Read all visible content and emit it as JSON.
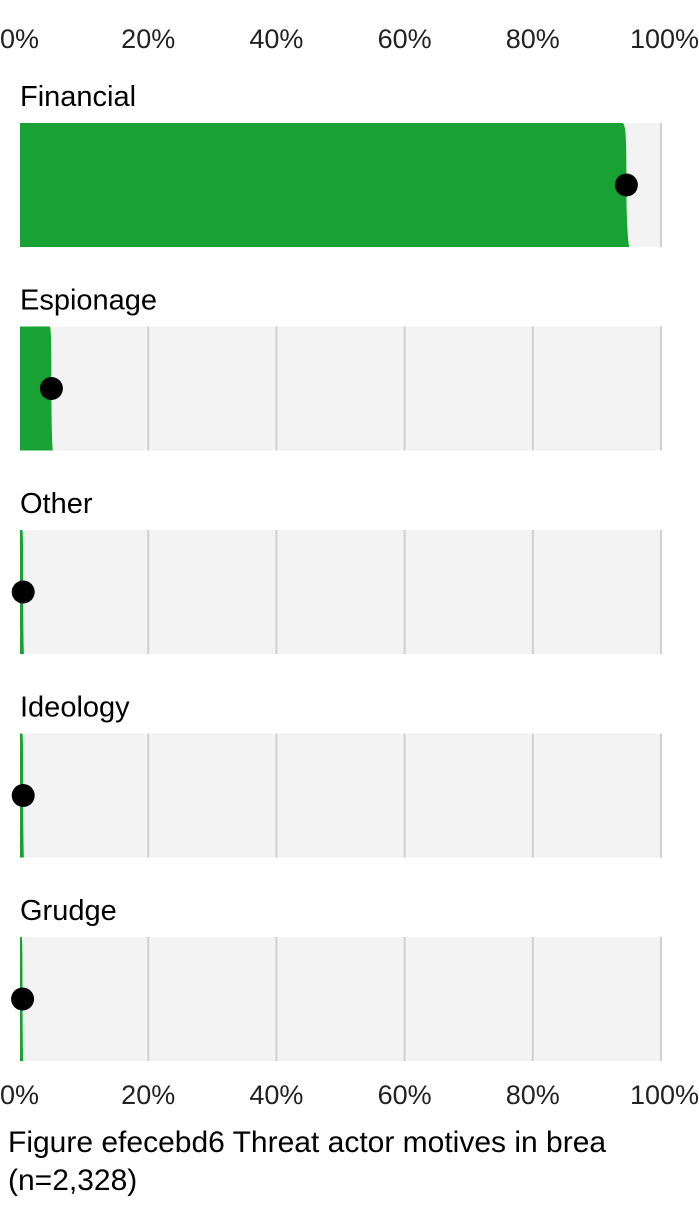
{
  "chart_data": {
    "type": "bar",
    "title": "",
    "xlabel": "",
    "ylabel": "",
    "xlim": [
      0,
      100
    ],
    "ticks": [
      "0%",
      "20%",
      "40%",
      "60%",
      "80%",
      "100%"
    ],
    "tick_values": [
      0,
      20,
      40,
      60,
      80,
      100
    ],
    "grid": true,
    "axis_positions": [
      "top",
      "bottom"
    ],
    "colors": {
      "bar": "#19a233",
      "track": "#f3f3f3",
      "grid": "#d0d0d0",
      "dot": "#000000"
    },
    "categories": [
      "Financial",
      "Espionage",
      "Other",
      "Ideology",
      "Grudge"
    ],
    "values": [
      94.6,
      4.9,
      0.5,
      0.5,
      0.4
    ]
  },
  "caption": {
    "line1": "Figure efecebd6 Threat actor motives in brea",
    "line2": "(n=2,328)"
  }
}
